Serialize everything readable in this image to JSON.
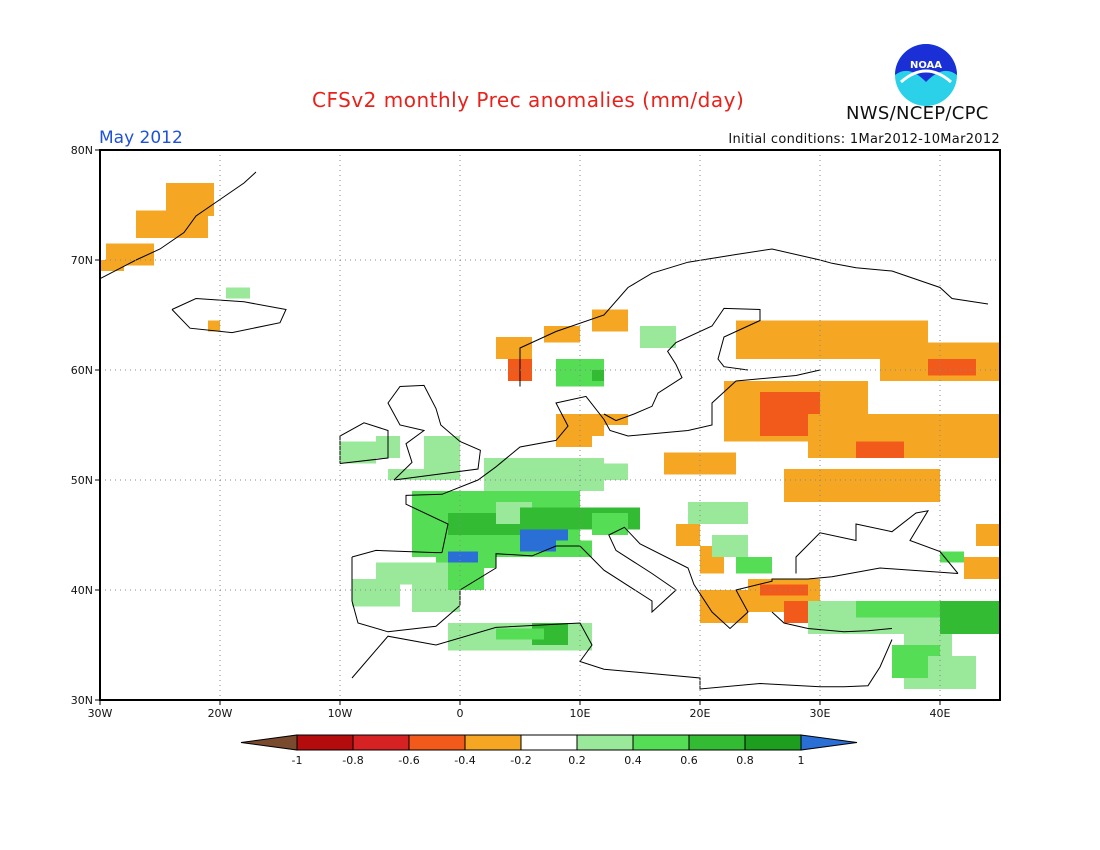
{
  "header": {
    "title": "CFSv2 monthly Prec anomalies (mm/day)",
    "month": "May 2012",
    "initial_conditions": "Initial conditions: 1Mar2012-10Mar2012",
    "agency": "NWS/NCEP/CPC",
    "logo_text": "NOAA"
  },
  "axes": {
    "lat_ticks": [
      "80N",
      "70N",
      "60N",
      "50N",
      "40N",
      "30N"
    ],
    "lon_ticks": [
      "30W",
      "20W",
      "10W",
      "0",
      "10E",
      "20E",
      "30E",
      "40E"
    ],
    "lat_range": [
      30,
      80
    ],
    "lon_range": [
      -30,
      45
    ],
    "grid": "dotted"
  },
  "colorbar": {
    "labels": [
      "-1",
      "-0.8",
      "-0.6",
      "-0.4",
      "-0.2",
      "0.2",
      "0.4",
      "0.6",
      "0.8",
      "1"
    ],
    "colors": [
      "#7a4a2e",
      "#b40c0c",
      "#d62222",
      "#f25a1c",
      "#f5a623",
      "#ffffff",
      "#9ae89a",
      "#55dd55",
      "#33bb33",
      "#1e9e1e",
      "#2a6fd6"
    ]
  },
  "colors": {
    "dry_light": "#f5a623",
    "dry_strong": "#f25a1c",
    "wet_light": "#9ae89a",
    "wet_mid": "#55dd55",
    "wet_strong": "#33bb33",
    "wet_max": "#2a6fd6"
  }
}
